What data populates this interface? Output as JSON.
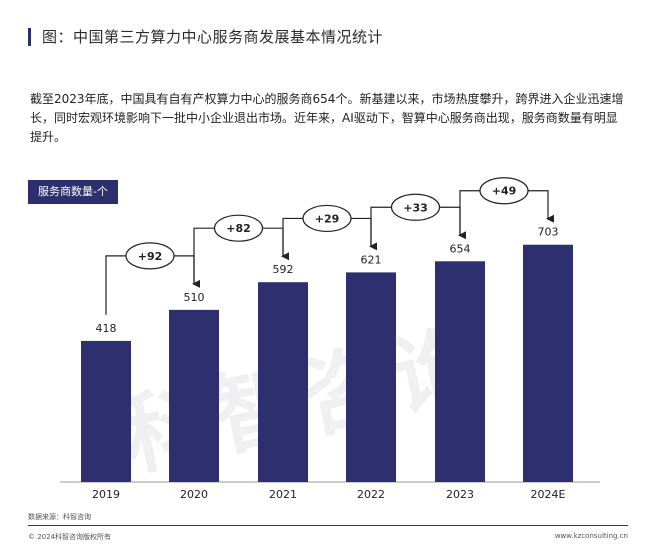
{
  "header": {
    "title": "图：中国第三方算力中心服务商发展基本情况统计"
  },
  "description": "截至2023年底，中国具有自有产权算力中心的服务商654个。新基建以来，市场热度攀升，跨界进入企业迅速增长，同时宏观环境影响下一批中小企业退出市场。近年来，AI驱动下，智算中心服务商出现，服务商数量有明显提升。",
  "unit_label": "服务商数量-个",
  "watermark": "科智咨询",
  "footer": {
    "source": "数据来源：科智咨询",
    "copyright": "© 2024科智咨询版权所有",
    "website": "www.kzconsulting.cn"
  },
  "colors": {
    "bar": "#2d2f6e",
    "text": "#222222"
  },
  "chart_data": {
    "type": "bar",
    "categories": [
      "2019",
      "2020",
      "2021",
      "2022",
      "2023",
      "2024E"
    ],
    "values": [
      418,
      510,
      592,
      621,
      654,
      703
    ],
    "increments": [
      "+92",
      "+82",
      "+29",
      "+33",
      "+49"
    ],
    "ylim": [
      0,
      800
    ],
    "grid": false
  }
}
